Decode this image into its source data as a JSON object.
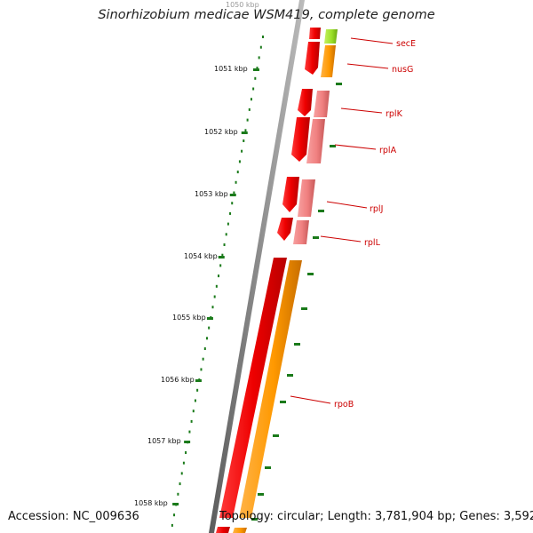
{
  "title": "Sinorhizobium medicae WSM419, complete genome",
  "footer": {
    "accession": "Accession: NC_009636",
    "topology": "Topology: circular; Length: 3,781,904 bp; Genes: 3,592"
  },
  "ruler": {
    "top_label": "1050 kbp",
    "tick_labels": [
      "1051 kbp",
      "1052 kbp",
      "1053 kbp",
      "1054 kbp",
      "1055 kbp",
      "1056 kbp",
      "1057 kbp",
      "1058 kbp"
    ]
  },
  "genes": [
    {
      "name": "secE",
      "cds_color": "#9be028"
    },
    {
      "name": "nusG",
      "cds_color": "#ff9900"
    },
    {
      "name": "rplK",
      "cds_color": "#f08080"
    },
    {
      "name": "rplA",
      "cds_color": "#f08080"
    },
    {
      "name": "rplJ",
      "cds_color": "#f08080"
    },
    {
      "name": "rplL",
      "cds_color": "#f08080"
    },
    {
      "name": "rpoB",
      "cds_color": "#ff9900"
    }
  ],
  "colors": {
    "gene": "#ee0000",
    "label": "#cc0000",
    "ruler": "#1a7a1a",
    "backbone": "#7a7a7a"
  }
}
